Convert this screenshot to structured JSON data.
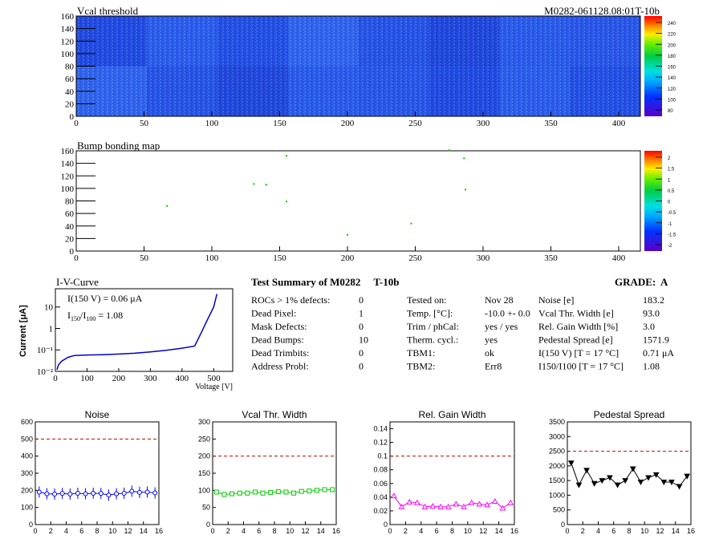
{
  "module_id": "M0282-061128.08:01T-10b",
  "vcal_map": {
    "title": "Vcal threshold",
    "x_ticks": [
      "0",
      "50",
      "100",
      "150",
      "200",
      "250",
      "300",
      "350",
      "400"
    ],
    "y_ticks": [
      "0",
      "20",
      "40",
      "60",
      "80",
      "100",
      "120",
      "140",
      "160"
    ],
    "palette_labels": [
      "80",
      "100",
      "120",
      "140",
      "160",
      "180",
      "200",
      "220",
      "240"
    ]
  },
  "bump_map": {
    "title": "Bump bonding map",
    "x_ticks": [
      "0",
      "50",
      "100",
      "150",
      "200",
      "250",
      "300",
      "350",
      "400"
    ],
    "y_ticks": [
      "0",
      "20",
      "40",
      "60",
      "80",
      "100",
      "120",
      "140",
      "160"
    ],
    "palette_labels": [
      "-2",
      "-1.5",
      "-1",
      "-0.5",
      "0",
      "0.5",
      "1",
      "1.5",
      "2"
    ],
    "dead_bumps": [
      [
        67,
        72
      ],
      [
        131,
        107
      ],
      [
        140,
        106
      ],
      [
        155,
        152
      ],
      [
        155,
        79
      ],
      [
        200,
        26
      ],
      [
        247,
        44
      ],
      [
        275,
        161
      ],
      [
        286,
        148
      ],
      [
        287,
        98
      ]
    ]
  },
  "iv_curve": {
    "title": "I-V-Curve",
    "ylabel": "Current [μA]",
    "xlabel": "Voltage [V]",
    "x_ticks": [
      "0",
      "100",
      "200",
      "300",
      "400",
      "500"
    ],
    "y_ticks": [
      "10⁻²",
      "10⁻¹",
      "1",
      "10"
    ],
    "note_i150": "I(150 V) = 0.06 μA",
    "note_ratio_label": "I",
    "note_ratio_sub1": "150",
    "note_ratio_slash": "/I",
    "note_ratio_sub2": "100",
    "note_ratio_value": "=  1.08"
  },
  "summary": {
    "title": "Test Summary of M0282     T-10b",
    "grade": "GRADE:  A",
    "left": [
      {
        "label": "ROCs > 1% defects:",
        "value": "0"
      },
      {
        "label": "Dead Pixel:",
        "value": "1"
      },
      {
        "label": "Mask Defects:",
        "value": "0"
      },
      {
        "label": "Dead Bumps:",
        "value": "10"
      },
      {
        "label": "Dead Trimbits:",
        "value": "0"
      },
      {
        "label": "Address Probl:",
        "value": "0"
      }
    ],
    "mid": [
      {
        "label": "Tested on:",
        "value": "Nov 28"
      },
      {
        "label": "Temp. [°C]:",
        "value": "-10.0 +- 0.0"
      },
      {
        "label": "Trim / phCal:",
        "value": "yes / yes"
      },
      {
        "label": "Therm. cycl.:",
        "value": "yes"
      },
      {
        "label": "TBM1:",
        "value": "ok"
      },
      {
        "label": "TBM2:",
        "value": "Err8"
      }
    ],
    "right": [
      {
        "label": "Noise [e]",
        "value": "183.2"
      },
      {
        "label": "Vcal Thr. Width [e]",
        "value": "93.0"
      },
      {
        "label": "Rel. Gain Width [%]",
        "value": "3.0"
      },
      {
        "label": "Pedestal Spread [e]",
        "value": "1571.9"
      },
      {
        "label": "I(150 V) [T = 17 °C]",
        "value": "0.71 μA"
      },
      {
        "label": "I150/I100  [T = 17 °C]",
        "value": "1.08"
      }
    ]
  },
  "chart_data": [
    {
      "type": "scatter",
      "title": "Noise",
      "xlabel": "",
      "ylabel": "",
      "xlim": [
        0,
        16
      ],
      "ylim": [
        0,
        600
      ],
      "threshold": 500,
      "x_ticks": [
        "0",
        "2",
        "4",
        "6",
        "8",
        "10",
        "12",
        "14",
        "16"
      ],
      "y_ticks": [
        "0",
        "100",
        "200",
        "300",
        "400",
        "500",
        "600"
      ],
      "color": "#0000ff",
      "marker": "circle",
      "x": [
        0.5,
        1.5,
        2.5,
        3.5,
        4.5,
        5.5,
        6.5,
        7.5,
        8.5,
        9.5,
        10.5,
        11.5,
        12.5,
        13.5,
        14.5,
        15.5
      ],
      "values": [
        190,
        180,
        178,
        182,
        178,
        183,
        180,
        183,
        182,
        172,
        180,
        183,
        195,
        188,
        190,
        185
      ]
    },
    {
      "type": "line",
      "title": "Vcal Thr. Width",
      "xlabel": "",
      "ylabel": "",
      "xlim": [
        0,
        16
      ],
      "ylim": [
        0,
        300
      ],
      "threshold": 200,
      "x_ticks": [
        "0",
        "2",
        "4",
        "6",
        "8",
        "10",
        "12",
        "14",
        "16"
      ],
      "y_ticks": [
        "0",
        "50",
        "100",
        "150",
        "200",
        "250",
        "300"
      ],
      "color": "#00cc00",
      "marker": "square",
      "x": [
        0.5,
        1.5,
        2.5,
        3.5,
        4.5,
        5.5,
        6.5,
        7.5,
        8.5,
        9.5,
        10.5,
        11.5,
        12.5,
        13.5,
        14.5,
        15.5
      ],
      "values": [
        95,
        88,
        90,
        92,
        92,
        95,
        92,
        94,
        96,
        95,
        92,
        97,
        98,
        100,
        102,
        102
      ]
    },
    {
      "type": "line",
      "title": "Rel. Gain Width",
      "xlabel": "",
      "ylabel": "",
      "xlim": [
        0,
        16
      ],
      "ylim": [
        0,
        0.15
      ],
      "threshold": 0.1,
      "x_ticks": [
        "0",
        "2",
        "4",
        "6",
        "8",
        "10",
        "12",
        "14",
        "16"
      ],
      "y_ticks": [
        "0",
        "0.02",
        "0.04",
        "0.06",
        "0.08",
        "0.1",
        "0.12",
        "0.14"
      ],
      "color": "#ff00ff",
      "marker": "triangle",
      "x": [
        0.5,
        1.5,
        2.5,
        3.5,
        4.5,
        5.5,
        6.5,
        7.5,
        8.5,
        9.5,
        10.5,
        11.5,
        12.5,
        13.5,
        14.5,
        15.5
      ],
      "values": [
        0.042,
        0.026,
        0.033,
        0.032,
        0.026,
        0.027,
        0.026,
        0.026,
        0.03,
        0.026,
        0.032,
        0.03,
        0.029,
        0.034,
        0.024,
        0.032
      ]
    },
    {
      "type": "line",
      "title": "Pedestal Spread",
      "xlabel": "",
      "ylabel": "",
      "xlim": [
        0,
        16
      ],
      "ylim": [
        0,
        3500
      ],
      "threshold": 2500,
      "x_ticks": [
        "0",
        "2",
        "4",
        "6",
        "8",
        "10",
        "12",
        "14",
        "16"
      ],
      "y_ticks": [
        "0",
        "500",
        "1000",
        "1500",
        "2000",
        "2500",
        "3000",
        "3500"
      ],
      "color": "#000000",
      "marker": "triangle-down",
      "x": [
        0.5,
        1.5,
        2.5,
        3.5,
        4.5,
        5.5,
        6.5,
        7.5,
        8.5,
        9.5,
        10.5,
        11.5,
        12.5,
        13.5,
        14.5,
        15.5
      ],
      "values": [
        2100,
        1350,
        1850,
        1400,
        1500,
        1600,
        1350,
        1500,
        1900,
        1450,
        1600,
        1700,
        1450,
        1450,
        1300,
        1650
      ]
    }
  ]
}
